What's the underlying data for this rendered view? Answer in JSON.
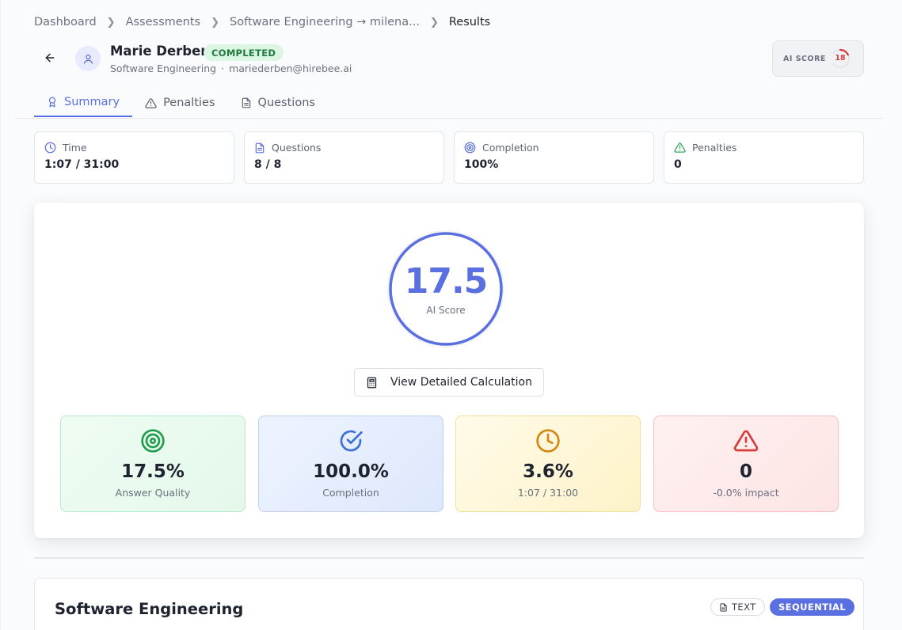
{
  "breadcrumb": {
    "items": [
      "Dashboard",
      "Assessments",
      "Software Engineering → milena...",
      "Results"
    ]
  },
  "candidate": {
    "name": "Marie Derben",
    "status": "COMPLETED",
    "track": "Software Engineering",
    "email": "mariederben@hirebee.ai",
    "avatar_icon": "user-icon"
  },
  "ai_score_pill": {
    "label": "AI SCORE",
    "value": "18",
    "gauge_fraction": 0.18,
    "color": "#dc3b3b"
  },
  "tabs": [
    {
      "label": "Summary",
      "icon": "award-icon",
      "active": true
    },
    {
      "label": "Penalties",
      "icon": "warning-icon",
      "active": false
    },
    {
      "label": "Questions",
      "icon": "document-icon",
      "active": false
    }
  ],
  "stats": [
    {
      "label": "Time",
      "value": "1:07 / 31:00",
      "icon": "clock-icon"
    },
    {
      "label": "Questions",
      "value": "8 / 8",
      "icon": "document-icon"
    },
    {
      "label": "Completion",
      "value": "100%",
      "icon": "target-icon"
    },
    {
      "label": "Penalties",
      "value": "0",
      "icon": "warning-icon"
    }
  ],
  "score": {
    "value": "17.5",
    "label": "AI Score",
    "accent": "#5a6fe0"
  },
  "calc_button": {
    "label": "View Detailed Calculation",
    "icon": "calculator-icon"
  },
  "metrics": [
    {
      "value": "17.5%",
      "label": "Answer Quality",
      "icon": "target-icon",
      "color": "#1f9d4d"
    },
    {
      "value": "100.0%",
      "label": "Completion",
      "icon": "check-circle-icon",
      "color": "#3b6fd8"
    },
    {
      "value": "3.6%",
      "label": "1:07 / 31:00",
      "icon": "clock-icon",
      "color": "#d4860f"
    },
    {
      "value": "0",
      "label": "-0.0% impact",
      "icon": "warning-icon",
      "color": "#d63b3b"
    }
  ],
  "section": {
    "title": "Software Engineering",
    "badges": [
      "TEXT",
      "SEQUENTIAL"
    ]
  }
}
